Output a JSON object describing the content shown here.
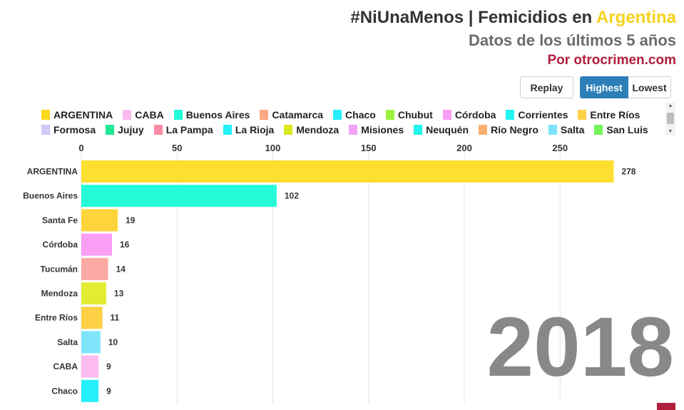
{
  "header": {
    "title_prefix": "#NiUnaMenos | Femicidios en ",
    "title_highlight": "Argentina",
    "subtitle": "Datos de los últimos 5 años",
    "source": "Por otrocrimen.com"
  },
  "controls": {
    "replay_label": "Replay",
    "highest_label": "Highest",
    "lowest_label": "Lowest"
  },
  "legend": {
    "rows": [
      [
        {
          "name": "ARGENTINA",
          "color": "#fcd81f"
        },
        {
          "name": "CABA",
          "color": "#fcb9ef"
        },
        {
          "name": "Buenos Aires",
          "color": "#22fbd7"
        },
        {
          "name": "Catamarca",
          "color": "#fda783"
        },
        {
          "name": "Chaco",
          "color": "#23f0fb"
        },
        {
          "name": "Chubut",
          "color": "#9bf13e"
        },
        {
          "name": "Córdoba",
          "color": "#fa9df5"
        },
        {
          "name": "Corrientes",
          "color": "#25f5f3"
        },
        {
          "name": "Entre Ríos",
          "color": "#fcd144"
        }
      ],
      [
        {
          "name": "Formosa",
          "color": "#cfc9f7"
        },
        {
          "name": "Jujuy",
          "color": "#1ee892"
        },
        {
          "name": "La Pampa",
          "color": "#f88ca4"
        },
        {
          "name": "La Rioja",
          "color": "#22f2f9"
        },
        {
          "name": "Mendoza",
          "color": "#d9e81f"
        },
        {
          "name": "Misiones",
          "color": "#f3a3f5"
        },
        {
          "name": "Neuquén",
          "color": "#20f5ea"
        },
        {
          "name": "Río Negro",
          "color": "#fbb071"
        },
        {
          "name": "Salta",
          "color": "#7de3fa"
        },
        {
          "name": "San Luis",
          "color": "#76f55a"
        }
      ]
    ]
  },
  "chart_data": {
    "type": "bar",
    "orientation": "horizontal",
    "categories": [
      "ARGENTINA",
      "Buenos Aires",
      "Santa Fe",
      "Córdoba",
      "Tucumán",
      "Mendoza",
      "Entre Ríos",
      "Salta",
      "CABA",
      "Chaco"
    ],
    "values": [
      278,
      102,
      19,
      16,
      14,
      13,
      11,
      10,
      9,
      9
    ],
    "colors": [
      "#fddf2f",
      "#25fbd9",
      "#fdd53a",
      "#fa9df5",
      "#fda9a3",
      "#e2ec32",
      "#fdd045",
      "#7fe5fa",
      "#fdbcef",
      "#25f0fb"
    ],
    "xlim": [
      0,
      300
    ],
    "ticks": [
      0,
      50,
      100,
      150,
      200,
      250
    ],
    "grid": true,
    "year": "2018"
  }
}
